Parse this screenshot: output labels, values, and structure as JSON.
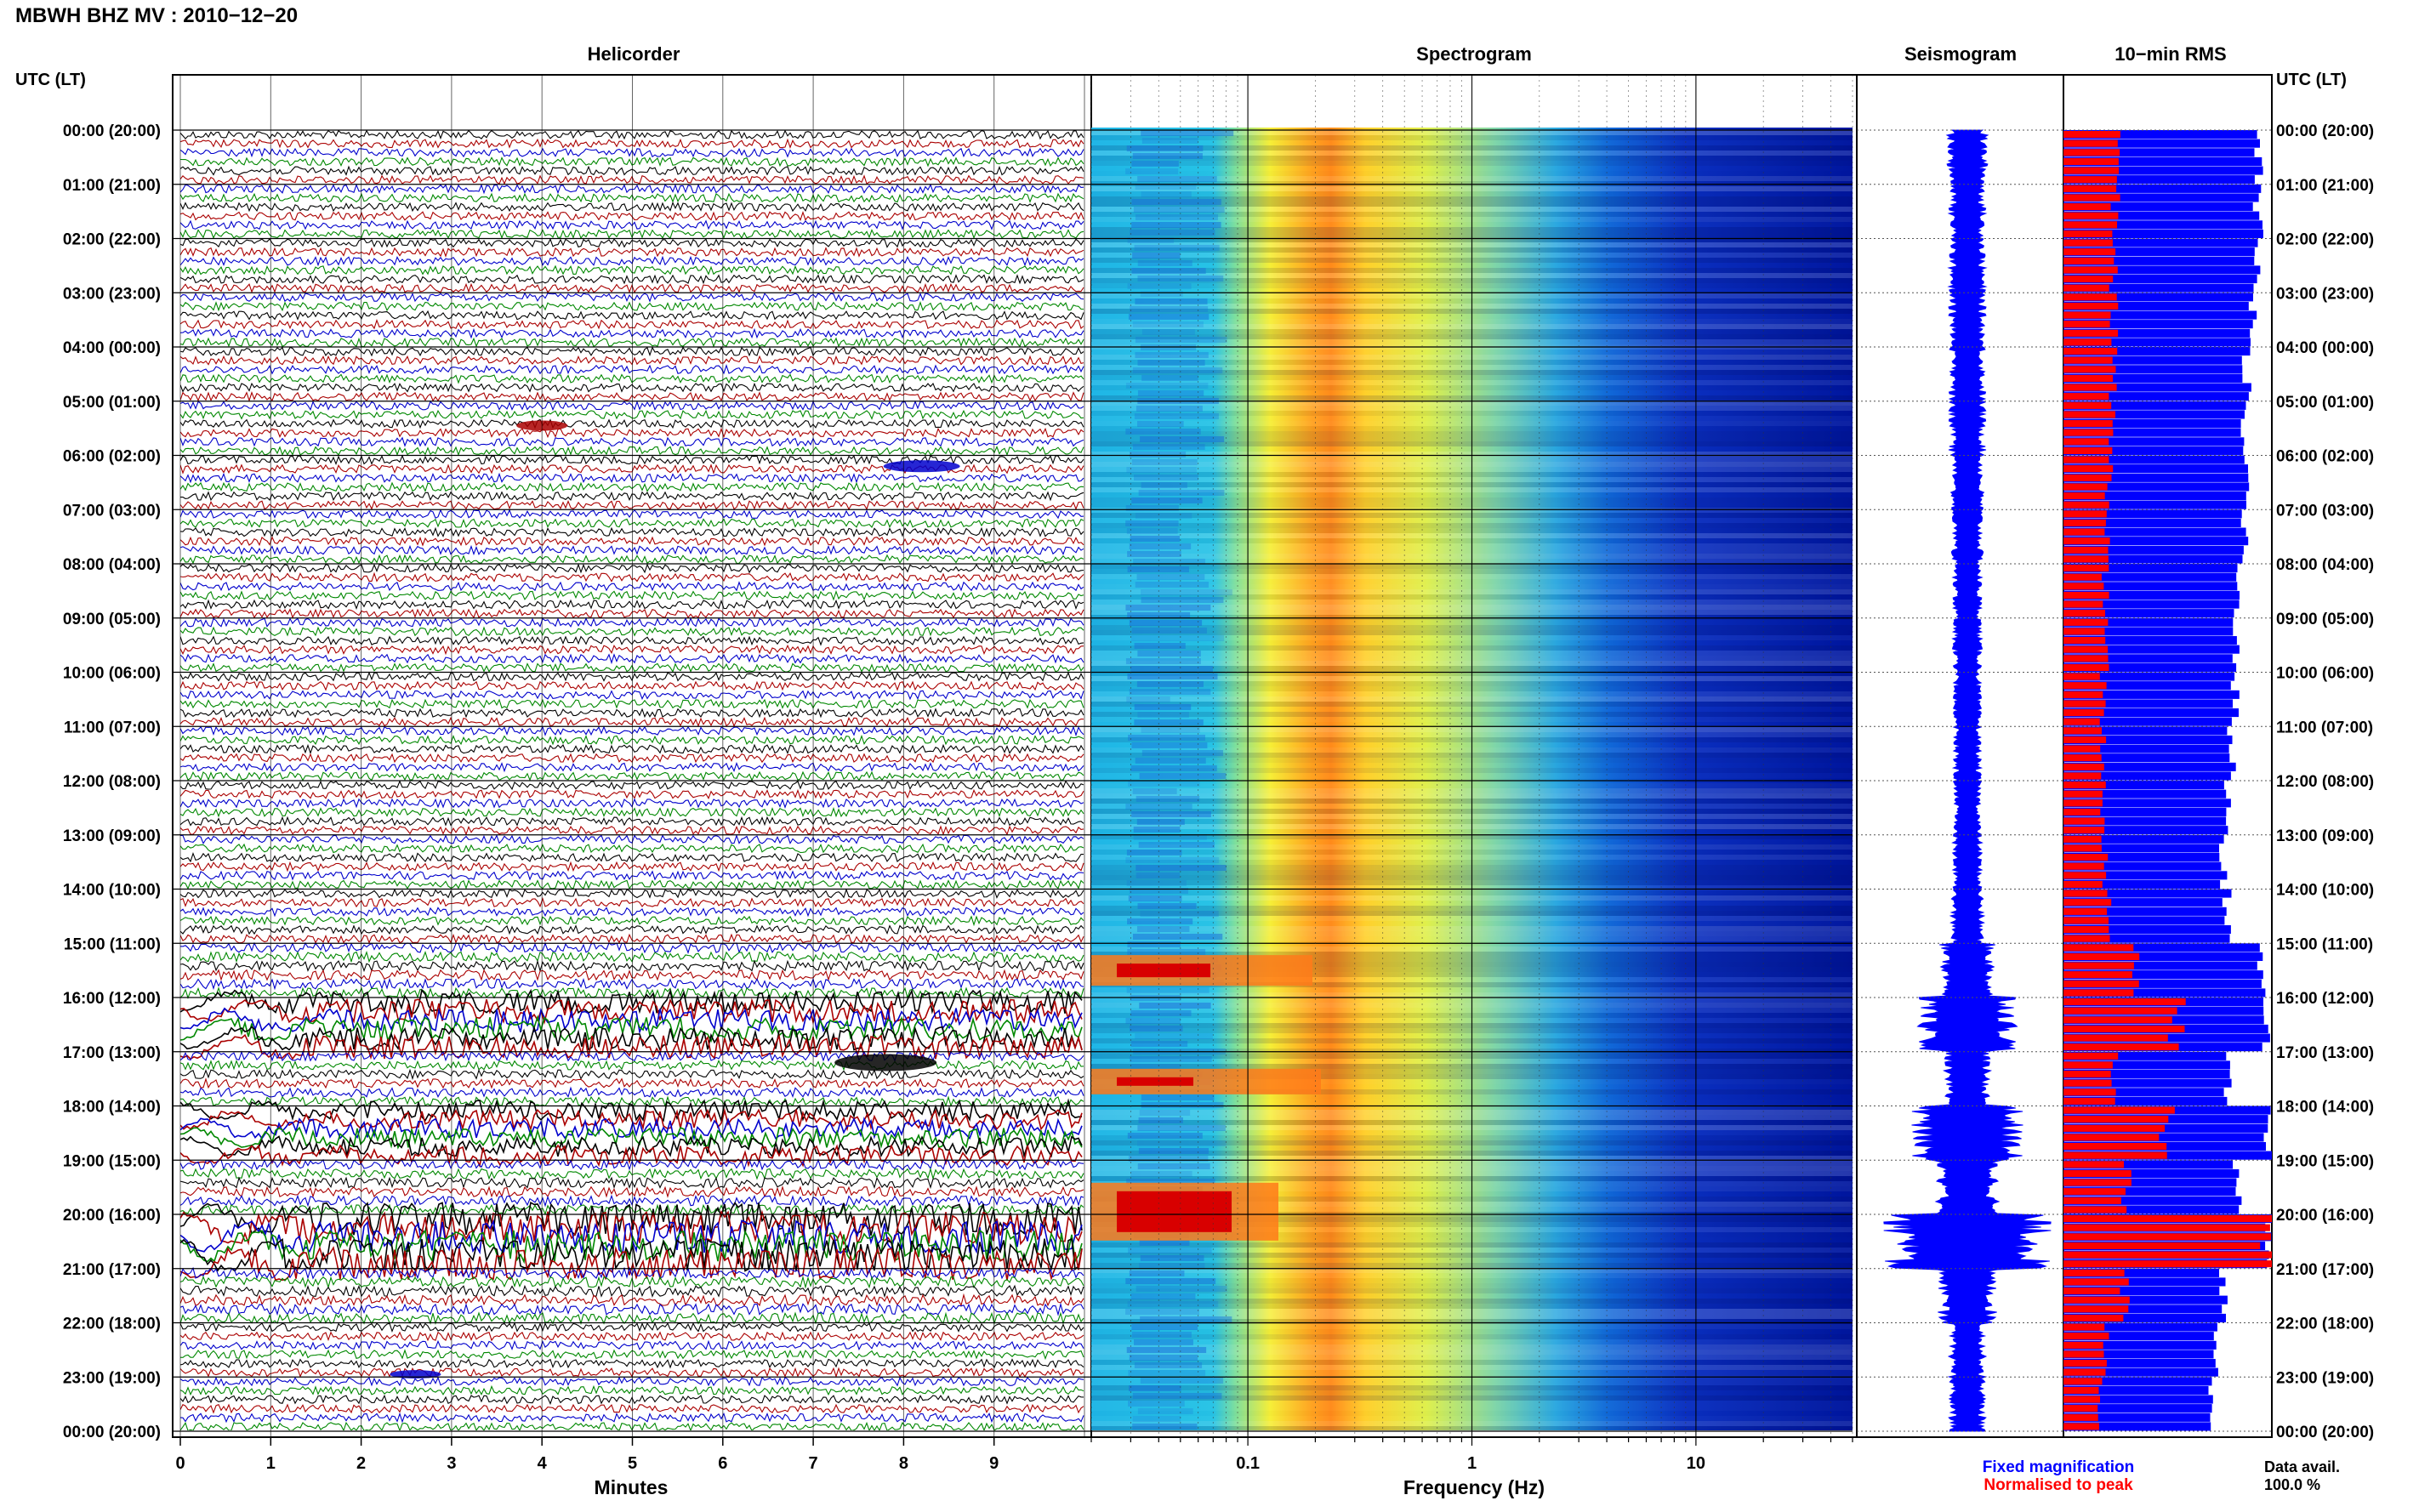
{
  "header": {
    "station_title": "MBWH BHZ MV : 2010−12−20",
    "time_axis_label": "UTC (LT)"
  },
  "panels": {
    "helicorder": "Helicorder",
    "spectrogram": "Spectrogram",
    "seismogram": "Seismogram",
    "rms": "10−min RMS"
  },
  "footer": {
    "minutes_label": "Minutes",
    "frequency_label": "Frequency (Hz)",
    "legend_fixed": "Fixed magnification",
    "legend_normalised": "Normalised to peak",
    "data_avail_label": "Data avail.",
    "data_avail_value": "100.0 %"
  },
  "colors": {
    "trace_cycle": [
      "#000000",
      "#aa0000",
      "#0000cc",
      "#008800"
    ],
    "fixed_magnification": "#0000ff",
    "normalised_to_peak": "#ff0000"
  },
  "chart_data": [
    {
      "type": "line",
      "title": "Helicorder",
      "xlabel": "Minutes",
      "x_ticks": [
        "0",
        "1",
        "2",
        "3",
        "4",
        "5",
        "6",
        "7",
        "8",
        "9"
      ],
      "xlim": [
        0,
        10
      ],
      "time_labels": [
        "00:00 (20:00)",
        "01:00 (21:00)",
        "02:00 (22:00)",
        "03:00 (23:00)",
        "04:00 (00:00)",
        "05:00 (01:00)",
        "06:00 (02:00)",
        "07:00 (03:00)",
        "08:00 (04:00)",
        "09:00 (05:00)",
        "10:00 (06:00)",
        "11:00 (07:00)",
        "12:00 (08:00)",
        "13:00 (09:00)",
        "14:00 (10:00)",
        "15:00 (11:00)",
        "16:00 (12:00)",
        "17:00 (13:00)",
        "18:00 (14:00)",
        "19:00 (15:00)",
        "20:00 (16:00)",
        "21:00 (17:00)",
        "22:00 (18:00)",
        "23:00 (19:00)",
        "00:00 (20:00)"
      ],
      "lines_per_hour": 6,
      "relative_amplitude_by_hour": [
        1.0,
        1.0,
        1.0,
        1.0,
        1.0,
        1.0,
        1.0,
        1.0,
        1.0,
        1.0,
        1.0,
        1.0,
        1.0,
        1.0,
        1.0,
        1.2,
        2.2,
        1.1,
        1.8,
        1.2,
        3.2,
        1.3,
        1.0,
        1.0
      ],
      "grid": true
    },
    {
      "type": "heatmap",
      "title": "Spectrogram",
      "xlabel": "Frequency (Hz)",
      "x_scale": "log",
      "xlim": [
        0.02,
        50
      ],
      "x_ticks": [
        "0.1",
        "1",
        "10"
      ],
      "peak_band_hz": [
        0.2,
        0.35
      ],
      "low_frequency_bursts_utc_hour": [
        15.5,
        17.5,
        19.5
      ],
      "colormap": "jet"
    },
    {
      "type": "area",
      "title": "Seismogram",
      "relative_envelope_by_hour": [
        0.22,
        0.2,
        0.2,
        0.2,
        0.2,
        0.2,
        0.18,
        0.17,
        0.16,
        0.16,
        0.15,
        0.15,
        0.15,
        0.16,
        0.18,
        0.3,
        0.55,
        0.25,
        0.6,
        0.35,
        0.9,
        0.32,
        0.2,
        0.2
      ],
      "color": "#0000ff"
    },
    {
      "type": "bar",
      "title": "10−min RMS",
      "series": [
        {
          "name": "Fixed magnification",
          "color": "#0000ff",
          "values_by_hour": [
            0.95,
            0.95,
            0.95,
            0.93,
            0.9,
            0.88,
            0.9,
            0.88,
            0.85,
            0.85,
            0.84,
            0.82,
            0.8,
            0.78,
            0.8,
            0.97,
            1.0,
            0.8,
            1.0,
            0.85,
            1.0,
            0.78,
            0.75,
            0.72
          ]
        },
        {
          "name": "Normalised to peak",
          "color": "#ff0000",
          "values_by_hour": [
            0.25,
            0.25,
            0.24,
            0.24,
            0.24,
            0.23,
            0.22,
            0.21,
            0.2,
            0.2,
            0.19,
            0.19,
            0.19,
            0.2,
            0.22,
            0.35,
            0.55,
            0.25,
            0.5,
            0.3,
            1.0,
            0.3,
            0.2,
            0.18
          ]
        }
      ],
      "categories_utc_hour": [
        0,
        1,
        2,
        3,
        4,
        5,
        6,
        7,
        8,
        9,
        10,
        11,
        12,
        13,
        14,
        15,
        16,
        17,
        18,
        19,
        20,
        21,
        22,
        23
      ]
    }
  ]
}
